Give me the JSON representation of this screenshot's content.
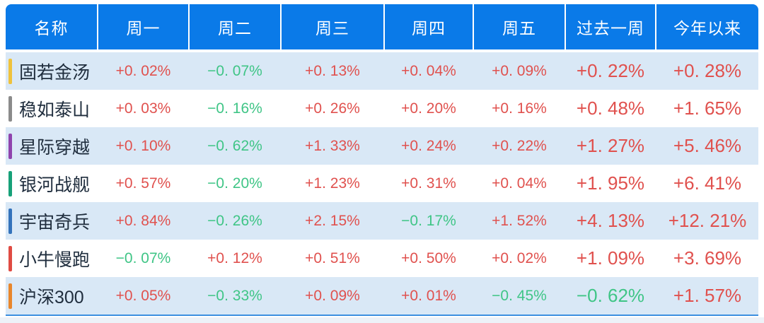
{
  "colors": {
    "header_bg": "#0a7ae8",
    "header_text": "#ffffff",
    "row_alt_bg": "#d9e8f6",
    "row_plain_bg": "#ffffff",
    "name_text": "#1f2d3d",
    "positive": "#e0514e",
    "negative": "#3fc586",
    "bottom_line": "#3d8fe0"
  },
  "format": {
    "positive_prefix": "+",
    "negative_prefix": "−",
    "suffix": "%",
    "decimals": 2
  },
  "chart_data": {
    "type": "table",
    "title": "",
    "columns": [
      "名称",
      "周一",
      "周二",
      "周三",
      "周四",
      "周五",
      "过去一周",
      "今年以来"
    ],
    "rows": [
      {
        "name": "固若金汤",
        "bar_color": "#efc23d",
        "values": [
          0.02,
          -0.07,
          0.13,
          0.04,
          0.09,
          0.22,
          0.28
        ]
      },
      {
        "name": "稳如泰山",
        "bar_color": "#8b8b8b",
        "values": [
          0.03,
          -0.16,
          0.26,
          0.2,
          0.16,
          0.48,
          1.65
        ]
      },
      {
        "name": "星际穿越",
        "bar_color": "#8f44ad",
        "values": [
          0.1,
          -0.62,
          1.33,
          0.24,
          0.22,
          1.27,
          5.46
        ]
      },
      {
        "name": "银河战舰",
        "bar_color": "#17a179",
        "values": [
          0.57,
          -0.2,
          1.23,
          0.31,
          0.04,
          1.95,
          6.41
        ]
      },
      {
        "name": "宇宙奇兵",
        "bar_color": "#3473bb",
        "values": [
          0.84,
          -0.26,
          2.15,
          -0.17,
          1.52,
          4.13,
          12.21
        ]
      },
      {
        "name": "小牛慢跑",
        "bar_color": "#e04b43",
        "values": [
          -0.07,
          0.12,
          0.51,
          0.5,
          0.02,
          1.09,
          3.69
        ]
      },
      {
        "name": "沪深300",
        "bar_color": "#e8862c",
        "values": [
          0.05,
          -0.33,
          0.09,
          0.01,
          -0.45,
          -0.62,
          1.57
        ]
      }
    ]
  }
}
